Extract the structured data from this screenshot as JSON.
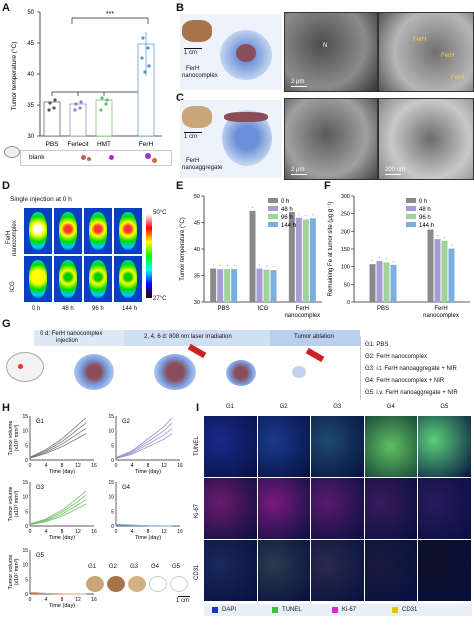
{
  "panel_letters": {
    "A": "A",
    "B": "B",
    "C": "C",
    "D": "D",
    "E": "E",
    "F": "F",
    "G": "G",
    "H": "H",
    "I": "I"
  },
  "panelA": {
    "ylabel": "Tumor temperature (°C)",
    "groups": [
      "PBS",
      "Ferlecit",
      "HMT",
      "FerH"
    ],
    "yticks": [
      "30",
      "35",
      "40",
      "45",
      "50"
    ],
    "signif": "***",
    "blank_label": "blank"
  },
  "panelB": {
    "label": "FerH\nnanocomplex",
    "label1": "FerH",
    "label2": "nanocomplex",
    "scale": "1 cm",
    "em_scale": "2 μm",
    "labels": [
      "N",
      "FerH",
      "FerH",
      "FerH"
    ]
  },
  "panelC": {
    "label1": "FerH",
    "label2": "nanoaggregate",
    "scale": "1 cm",
    "em_scale1": "2 μm",
    "em_scale2": "200 nm"
  },
  "panelD": {
    "title": "Single injection at 0 h",
    "rows": [
      "FerH\nnanocomplex",
      "ICG"
    ],
    "row1a": "FerH",
    "row1b": "nanocomplex",
    "row2": "ICG",
    "times": [
      "0 h",
      "48 h",
      "96 h",
      "144 h"
    ],
    "cmax": "50°C",
    "cmin": "27°C"
  },
  "chart_data": [
    {
      "type": "bar",
      "title": "E",
      "ylabel": "Tumor temperature (°C)",
      "categories": [
        "PBS",
        "ICG",
        "FerH nanocomplex"
      ],
      "ylim": [
        30,
        50
      ],
      "yticks": [
        "30",
        "35",
        "40",
        "45",
        "50"
      ],
      "series": [
        {
          "name": "0 h",
          "color": "#8a8a8a",
          "values": [
            36.3,
            47.2,
            47.0
          ]
        },
        {
          "name": "48 h",
          "color": "#a89cd8",
          "values": [
            36.2,
            36.3,
            45.9
          ]
        },
        {
          "name": "96 h",
          "color": "#9fd39a",
          "values": [
            36.2,
            36.1,
            45.6
          ]
        },
        {
          "name": "144 h",
          "color": "#79aee0",
          "values": [
            36.2,
            36.0,
            45.8
          ]
        }
      ]
    },
    {
      "type": "bar",
      "title": "F",
      "ylabel": "Remaining Fe at tumor site (μg g⁻¹)",
      "categories": [
        "PBS",
        "FerH nanocomplex"
      ],
      "ylim": [
        0,
        300
      ],
      "yticks": [
        "0",
        "50",
        "100",
        "150",
        "200",
        "250",
        "300"
      ],
      "series": [
        {
          "name": "0 h",
          "color": "#8a8a8a",
          "values": [
            107,
            205
          ]
        },
        {
          "name": "48 h",
          "color": "#a89cd8",
          "values": [
            116,
            178
          ]
        },
        {
          "name": "96 h",
          "color": "#9fd39a",
          "values": [
            112,
            173
          ]
        },
        {
          "name": "144 h",
          "color": "#79aee0",
          "values": [
            105,
            151
          ]
        }
      ]
    },
    {
      "type": "line",
      "title": "H",
      "ylabel": "Tumor volume (x10² mm³)",
      "xlabel": "Time (day)",
      "xlim": [
        0,
        16
      ],
      "ylim": [
        0,
        15
      ],
      "panels": [
        {
          "name": "G1",
          "color": "#777777"
        },
        {
          "name": "G2",
          "color": "#9b8fd4"
        },
        {
          "name": "G3",
          "color": "#6dc46a"
        },
        {
          "name": "G4",
          "color": "#7fb1e0"
        },
        {
          "name": "G5",
          "color": "#e89a6a"
        }
      ]
    }
  ],
  "panelE_legend": [
    "0 h",
    "48 h",
    "96 h",
    "144 h"
  ],
  "panelG": {
    "step1a": "0 d: FerH nanocomplex",
    "step1b": "injection",
    "step2": "2, 4, 6 d: 808 nm laser irradiation",
    "step3": "Tumor ablation",
    "groups": [
      "G1: PBS",
      "G2: FerH nanocomplex",
      "G3: i.t. FerH nanoaggregate + NIR",
      "G4: FerH nanocomplex + NIR",
      "G5: i.v. FerH nanoaggregate + NIR"
    ]
  },
  "panelH": {
    "ylabel1": "Tumor volume",
    "ylabel2": "(x10² mm³)",
    "xlabel": "Time (day)",
    "xticks": [
      "0",
      "4",
      "8",
      "12",
      "16"
    ],
    "yticks": [
      "0",
      "5",
      "10",
      "15"
    ],
    "photo_groups": [
      "G1",
      "G2",
      "G3",
      "G4",
      "G5"
    ],
    "scale": "1 cm"
  },
  "panelI": {
    "cols": [
      "G1",
      "G2",
      "G3",
      "G4",
      "G5"
    ],
    "rows": [
      "TUNEL",
      "Ki-67",
      "CD31"
    ],
    "legend": [
      "DAPI",
      "TUNEL",
      "Ki-67",
      "CD31"
    ]
  }
}
